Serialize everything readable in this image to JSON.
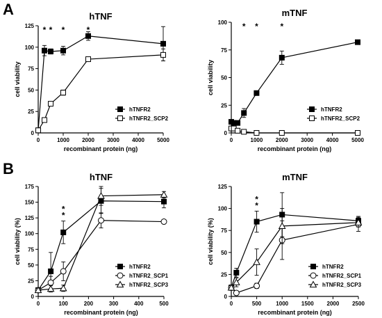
{
  "panel_labels": [
    "A",
    "B"
  ],
  "chart_data": [
    {
      "id": "A-left",
      "type": "line",
      "title": "hTNF",
      "xlabel": "recombinant protein (ng)",
      "ylabel": "cell viability",
      "xlim": [
        0,
        5000
      ],
      "ylim": [
        0,
        125
      ],
      "xticks": [
        0,
        1000,
        2000,
        3000,
        4000,
        5000
      ],
      "yticks": [
        0,
        25,
        50,
        75,
        100,
        125
      ],
      "legend_position": "bottom-right",
      "significance_marks": [
        {
          "x": 250,
          "label": "*"
        },
        {
          "x": 500,
          "label": "*"
        },
        {
          "x": 1000,
          "label": "*"
        },
        {
          "x": 2000,
          "label": "*"
        }
      ],
      "series": [
        {
          "name": "hTNFR2",
          "marker": "square-filled",
          "x": [
            0,
            250,
            500,
            1000,
            2000,
            5000
          ],
          "y": [
            3,
            96,
            95,
            96,
            113,
            104
          ],
          "err": [
            2,
            6,
            3,
            5,
            5,
            20
          ]
        },
        {
          "name": "hTNFR2_SCP2",
          "marker": "square-open",
          "x": [
            0,
            250,
            500,
            1000,
            2000,
            5000
          ],
          "y": [
            3,
            15,
            34,
            47,
            86,
            91
          ],
          "err": [
            1,
            2,
            2,
            3,
            2,
            7
          ]
        }
      ]
    },
    {
      "id": "A-right",
      "type": "line",
      "title": "mTNF",
      "xlabel": "recombinant protein (ng)",
      "ylabel": "cell viability",
      "xlim": [
        0,
        5000
      ],
      "ylim": [
        0,
        100
      ],
      "xticks": [
        0,
        1000,
        2000,
        3000,
        4000,
        5000
      ],
      "yticks": [
        0,
        25,
        50,
        75,
        100
      ],
      "legend_position": "bottom-right",
      "significance_marks": [
        {
          "x": 500,
          "label": "*"
        },
        {
          "x": 1000,
          "label": "*"
        },
        {
          "x": 2000,
          "label": "*"
        }
      ],
      "series": [
        {
          "name": "hTNFR2",
          "marker": "square-filled",
          "x": [
            0,
            100,
            250,
            500,
            1000,
            2000,
            5000
          ],
          "y": [
            10,
            9,
            9,
            18,
            36,
            68,
            82
          ],
          "err": [
            2,
            2,
            2,
            4,
            2,
            6,
            1
          ]
        },
        {
          "name": "hTNFR2_SCP2",
          "marker": "square-open",
          "x": [
            0,
            100,
            250,
            500,
            1000,
            2000,
            5000
          ],
          "y": [
            4,
            4,
            2,
            1,
            0,
            0,
            0
          ],
          "err": [
            1,
            1,
            1,
            1,
            1,
            1,
            1
          ]
        }
      ]
    },
    {
      "id": "B-left",
      "type": "line",
      "title": "hTNF",
      "xlabel": "recombinant protein (ng)",
      "ylabel": "cell viability (%)",
      "xlim": [
        0,
        500
      ],
      "ylim": [
        0,
        175
      ],
      "xticks": [
        0,
        100,
        200,
        300,
        400,
        500
      ],
      "yticks": [
        0,
        25,
        50,
        75,
        100,
        125,
        150,
        175
      ],
      "legend_position": "bottom-right",
      "significance_marks": [
        {
          "x": 100,
          "label": "*"
        },
        {
          "x": 100,
          "label": "*"
        }
      ],
      "series": [
        {
          "name": "hTNFR2",
          "marker": "square-filled",
          "x": [
            0,
            50,
            100,
            250,
            500
          ],
          "y": [
            10,
            40,
            102,
            152,
            151
          ],
          "err": [
            3,
            30,
            18,
            20,
            10
          ]
        },
        {
          "name": "hTNFR2_SCP1",
          "marker": "circle-open",
          "x": [
            0,
            50,
            100,
            250,
            500
          ],
          "y": [
            10,
            22,
            40,
            121,
            119
          ],
          "err": [
            3,
            10,
            15,
            12,
            2
          ]
        },
        {
          "name": "hTNFR2_SCP3",
          "marker": "triangle-open",
          "x": [
            0,
            50,
            100,
            250,
            500
          ],
          "y": [
            10,
            12,
            13,
            160,
            162
          ],
          "err": [
            3,
            5,
            5,
            15,
            5
          ]
        }
      ]
    },
    {
      "id": "B-right",
      "type": "line",
      "title": "mTNF",
      "xlabel": "recombinant protein (ng)",
      "ylabel": "cell viability (%)",
      "xlim": [
        0,
        2500
      ],
      "ylim": [
        0,
        125
      ],
      "xticks": [
        0,
        500,
        1000,
        1500,
        2000,
        2500
      ],
      "yticks": [
        0,
        25,
        50,
        75,
        100,
        125
      ],
      "legend_position": "bottom-right",
      "significance_marks": [
        {
          "x": 500,
          "label": "*"
        },
        {
          "x": 500,
          "label": "*"
        }
      ],
      "series": [
        {
          "name": "hTNFR2",
          "marker": "square-filled",
          "x": [
            0,
            100,
            500,
            1000,
            2500
          ],
          "y": [
            10,
            27,
            85,
            93,
            86
          ],
          "err": [
            3,
            5,
            12,
            25,
            5
          ]
        },
        {
          "name": "hTNFR2_SCP1",
          "marker": "circle-open",
          "x": [
            0,
            100,
            500,
            1000,
            2500
          ],
          "y": [
            10,
            4,
            12,
            64,
            82
          ],
          "err": [
            3,
            2,
            3,
            22,
            8
          ]
        },
        {
          "name": "hTNFR2_SCP3",
          "marker": "triangle-open",
          "x": [
            0,
            100,
            500,
            1000,
            2500
          ],
          "y": [
            10,
            16,
            39,
            80,
            84
          ],
          "err": [
            3,
            5,
            15,
            20,
            5
          ]
        }
      ]
    }
  ]
}
